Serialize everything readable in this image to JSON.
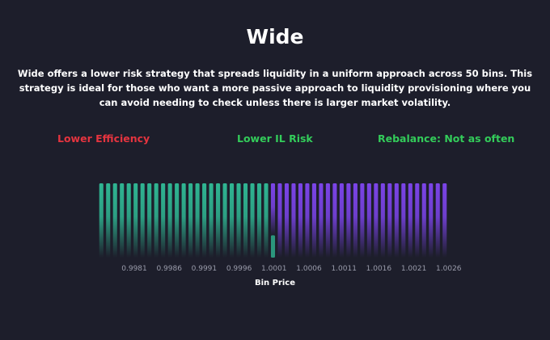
{
  "title": "Wide",
  "description": "Wide offers a lower risk strategy that spreads liquidity in a uniform approach across 50 bins. This strategy is ideal for those who want a more passive approach to liquidity provisioning where you can avoid needing to check unless there is larger market volatility.",
  "metrics": {
    "efficiency": {
      "text": "Lower Efficiency",
      "color": "#e5343f"
    },
    "il_risk": {
      "text": "Lower IL Risk",
      "color": "#33cc5a"
    },
    "rebalance": {
      "text": "Rebalance: Not as often",
      "color": "#33cc5a"
    }
  },
  "colors": {
    "background": "#1d1e2b",
    "green_bins": "#2fb592",
    "purple_bins": "#7b44e8"
  },
  "chart_data": {
    "type": "bar",
    "xlabel": "Bin Price",
    "tick_labels": [
      "0.9981",
      "0.9986",
      "0.9991",
      "0.9996",
      "1.0001",
      "1.0006",
      "1.0011",
      "1.0016",
      "1.0021",
      "1.0026"
    ],
    "series": [
      {
        "values": [
          1,
          1,
          1,
          1,
          1,
          1,
          1,
          1,
          1,
          1,
          1,
          1,
          1,
          1,
          1,
          1,
          1,
          1,
          1,
          1,
          1,
          1,
          1,
          1,
          1,
          0.3,
          0,
          0,
          0,
          0,
          0,
          0,
          0,
          0,
          0,
          0,
          0,
          0,
          0,
          0,
          0,
          0,
          0,
          0,
          0,
          0,
          0,
          0,
          0,
          0,
          0
        ]
      },
      {
        "values": [
          0,
          0,
          0,
          0,
          0,
          0,
          0,
          0,
          0,
          0,
          0,
          0,
          0,
          0,
          0,
          0,
          0,
          0,
          0,
          0,
          0,
          0,
          0,
          0,
          0,
          0.7,
          1,
          1,
          1,
          1,
          1,
          1,
          1,
          1,
          1,
          1,
          1,
          1,
          1,
          1,
          1,
          1,
          1,
          1,
          1,
          1,
          1,
          1,
          1,
          1,
          1
        ]
      }
    ]
  }
}
